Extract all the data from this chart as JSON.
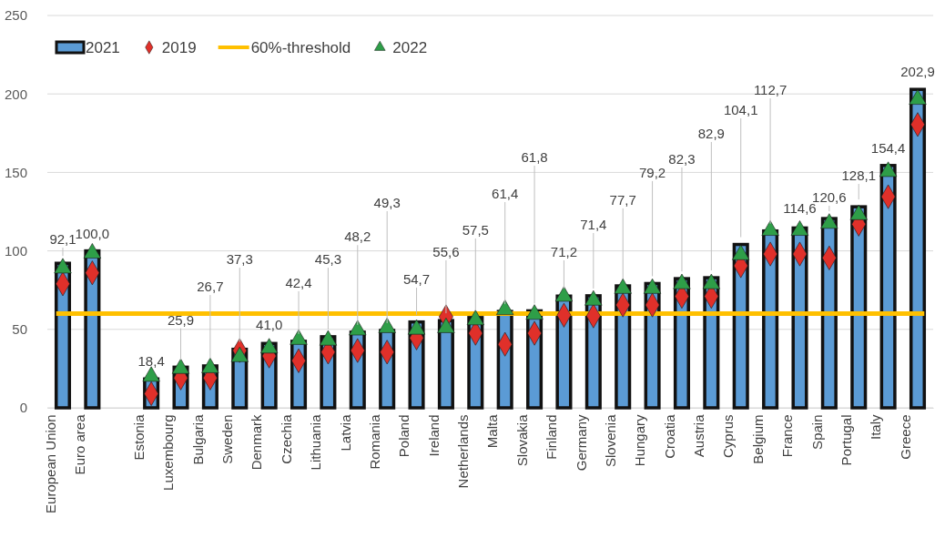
{
  "chart_data": {
    "type": "bar",
    "categories": [
      "European Union",
      "Euro area",
      null,
      "Estonia",
      "Luxembourg",
      "Bulgaria",
      "Sweden",
      "Denmark",
      "Czechia",
      "Lithuania",
      "Latvia",
      "Romania",
      "Poland",
      "Ireland",
      "Netherlands",
      "Malta",
      "Slovakia",
      "Finland",
      "Germany",
      "Slovenia",
      "Hungary",
      "Croatia",
      "Austria",
      "Cyprus",
      "Belgium",
      "France",
      "Spain",
      "Portugal",
      "Italy",
      "Greece"
    ],
    "series": [
      {
        "name": "2021",
        "type": "bar",
        "color": "#5b9bd5",
        "values": [
          92.1,
          100.0,
          null,
          18.4,
          25.9,
          26.7,
          37.3,
          41.0,
          42.4,
          45.3,
          48.2,
          49.3,
          54.7,
          55.6,
          57.5,
          61.4,
          61.8,
          71.2,
          71.4,
          77.7,
          79.2,
          82.3,
          82.9,
          104.1,
          112.7,
          114.6,
          120.6,
          128.1,
          154.4,
          202.9
        ],
        "value_labels": [
          "92,1",
          "100,0",
          null,
          "18,4",
          "25,9",
          "26,7",
          "37,3",
          "41,0",
          "42,4",
          "45,3",
          "48,2",
          "49,3",
          "54,7",
          "55,6",
          "57,5",
          "61,4",
          "61,8",
          "71,2",
          "71,4",
          "77,7",
          "79,2",
          "82,3",
          "82,9",
          "104,1",
          "112,7",
          "114,6",
          "120,6",
          "128,1",
          "154,4",
          "202,9"
        ]
      },
      {
        "name": "2019",
        "type": "scatter",
        "marker": "diamond",
        "color": "#e0302a",
        "values": [
          79,
          86,
          null,
          9,
          19,
          19,
          36.5,
          33,
          30,
          35.5,
          36.5,
          35.5,
          44.5,
          58,
          47.5,
          40.5,
          47.5,
          59,
          58.5,
          65.5,
          65.5,
          71,
          71,
          90.5,
          98,
          98,
          95.5,
          117,
          134.5,
          180.5
        ]
      },
      {
        "name": "2022",
        "type": "scatter",
        "marker": "triangle",
        "color": "#2e9e48",
        "values": [
          89,
          98.5,
          null,
          20,
          25,
          25.5,
          32.5,
          38,
          43.5,
          43,
          49.5,
          51,
          50,
          51,
          56,
          62.5,
          59.5,
          71,
          68.5,
          76,
          76,
          79,
          79,
          97.5,
          113,
          113,
          117.5,
          123,
          150.5,
          196.5
        ]
      }
    ],
    "ref_lines": [
      {
        "axis": "y",
        "value": 60,
        "label": "60%-threshold",
        "color": "#ffc000"
      }
    ],
    "ylim": [
      0,
      250
    ],
    "yticks": [
      0,
      50,
      100,
      150,
      200,
      250
    ],
    "grid": "y",
    "legend": "top left"
  }
}
